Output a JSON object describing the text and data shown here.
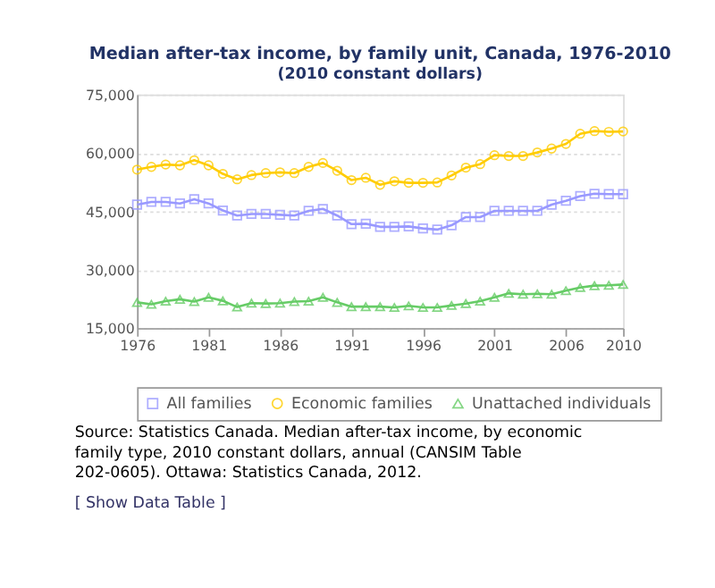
{
  "chart_data": {
    "type": "line",
    "title": "Median after-tax income, by family unit, Canada, 1976-2010",
    "subtitle": "(2010 constant dollars)",
    "x": [
      1976,
      1977,
      1978,
      1979,
      1980,
      1981,
      1982,
      1983,
      1984,
      1985,
      1986,
      1987,
      1988,
      1989,
      1990,
      1991,
      1992,
      1993,
      1994,
      1995,
      1996,
      1997,
      1998,
      1999,
      2000,
      2001,
      2002,
      2003,
      2004,
      2005,
      2006,
      2007,
      2008,
      2009,
      2010
    ],
    "xlim": [
      1976,
      2010
    ],
    "xticks": [
      1976,
      1981,
      1986,
      1991,
      1996,
      2001,
      2006,
      2010
    ],
    "ylim": [
      15000,
      75000
    ],
    "yticks": [
      {
        "value": 15000,
        "label": "15,000"
      },
      {
        "value": 30000,
        "label": "30,000"
      },
      {
        "value": 45000,
        "label": "45,000"
      },
      {
        "value": 60000,
        "label": "60,000"
      },
      {
        "value": 75000,
        "label": "75,000"
      }
    ],
    "grid": "y",
    "legend": "bottom",
    "series": [
      {
        "name": "All families",
        "color": "#9999ff",
        "marker": "square",
        "values": [
          46700,
          47400,
          47400,
          47000,
          48100,
          47000,
          45200,
          43900,
          44300,
          44300,
          44100,
          43900,
          45100,
          45600,
          43900,
          41700,
          41800,
          41000,
          41000,
          41100,
          40600,
          40300,
          41400,
          43500,
          43500,
          45100,
          45100,
          45100,
          45100,
          46700,
          47700,
          48900,
          49500,
          49400,
          49400
        ]
      },
      {
        "name": "Economic families",
        "color": "#ffcc00",
        "marker": "circle",
        "values": [
          55700,
          56400,
          57000,
          56800,
          58100,
          56800,
          54600,
          53200,
          54300,
          54800,
          55000,
          54800,
          56400,
          57400,
          55400,
          53000,
          53600,
          51800,
          52700,
          52300,
          52300,
          52400,
          54200,
          56200,
          57100,
          59400,
          59200,
          59200,
          60100,
          61100,
          62300,
          64900,
          65600,
          65400,
          65500
        ]
      },
      {
        "name": "Unattached individuals",
        "color": "#66cc66",
        "marker": "triangle",
        "values": [
          21600,
          21100,
          21900,
          22400,
          21800,
          22900,
          22000,
          20400,
          21400,
          21300,
          21400,
          21800,
          21900,
          22900,
          21600,
          20500,
          20500,
          20500,
          20300,
          20700,
          20300,
          20300,
          20800,
          21300,
          21900,
          22900,
          23900,
          23700,
          23800,
          23700,
          24600,
          25400,
          25900,
          26000,
          26200
        ]
      }
    ],
    "annotations": [
      "Source: Statistics Canada. Median after-tax income, by economic family type, 2010 constant dollars, annual (CANSIM Table 202-0605). Ottawa: Statistics Canada, 2012.",
      "[ Show Data Table ]"
    ]
  }
}
